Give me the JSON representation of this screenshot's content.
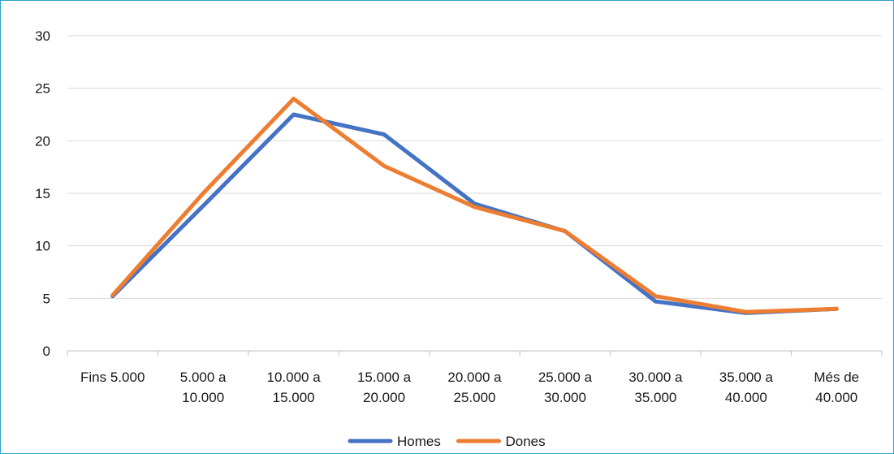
{
  "chart_data": {
    "type": "line",
    "title": "",
    "xlabel": "",
    "ylabel": "",
    "ylim": [
      0,
      30
    ],
    "yticks": [
      0,
      5,
      10,
      15,
      20,
      25,
      30
    ],
    "grid": true,
    "legend_position": "bottom",
    "categories": [
      [
        "Fins 5.000"
      ],
      [
        "5.000 a",
        "10.000"
      ],
      [
        "10.000 a",
        "15.000"
      ],
      [
        "15.000 a",
        "20.000"
      ],
      [
        "20.000 a",
        "25.000"
      ],
      [
        "25.000 a",
        "30.000"
      ],
      [
        "30.000 a",
        "35.000"
      ],
      [
        "35.000 a",
        "40.000"
      ],
      [
        "Més de",
        "40.000"
      ]
    ],
    "series": [
      {
        "name": "Homes",
        "color": "#4472c4",
        "values": [
          5.2,
          13.8,
          22.5,
          20.6,
          14.0,
          11.4,
          4.7,
          3.6,
          4.0
        ]
      },
      {
        "name": "Dones",
        "color": "#ed7d31",
        "values": [
          5.3,
          15.0,
          24.0,
          17.6,
          13.7,
          11.4,
          5.2,
          3.7,
          4.0
        ]
      }
    ]
  }
}
